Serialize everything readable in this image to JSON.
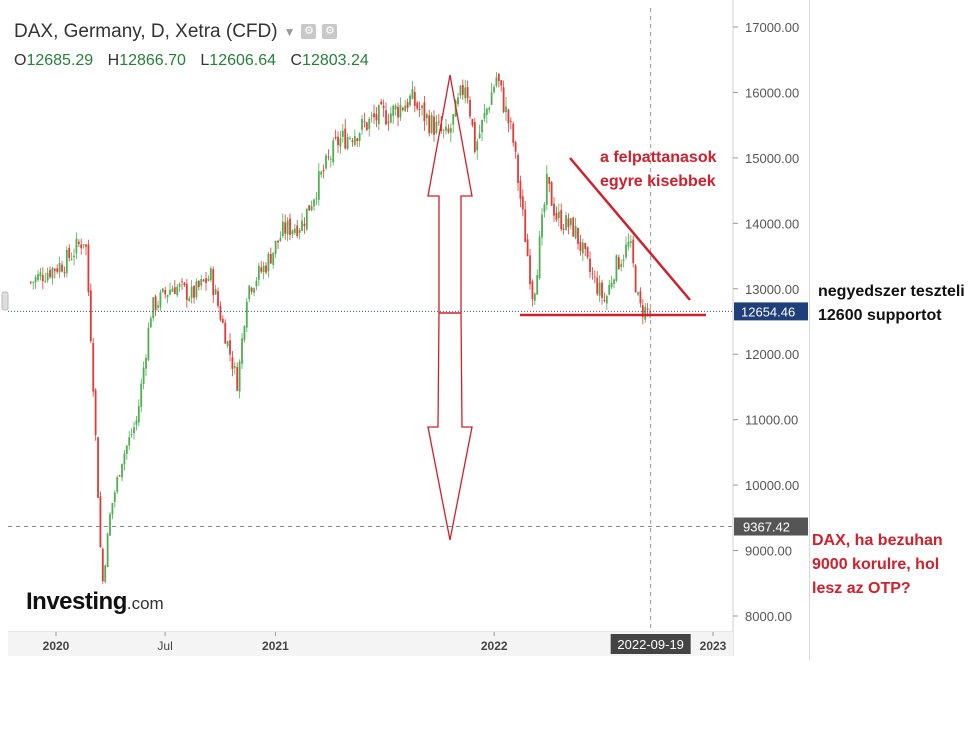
{
  "header": {
    "title": "DAX, Germany, D, Xetra (CFD)",
    "open_label": "O",
    "open": "12685.29",
    "high_label": "H",
    "high": "12866.70",
    "low_label": "L",
    "low": "12606.64",
    "close_label": "C",
    "close": "12803.24"
  },
  "logo": {
    "brand": "Investing",
    "suffix": ".com"
  },
  "annotations": {
    "triangle_note_line1": "a felpattanasok",
    "triangle_note_line2": "egyre kisebbek",
    "support_note_line1": "negyedszer teszteli",
    "support_note_line2": "12600 supportot",
    "crash_note_line1": "DAX, ha bezuhan",
    "crash_note_line2": "9000 korulre, hol",
    "crash_note_line3": "lesz az OTP?"
  },
  "colors": {
    "up": "#4caf50",
    "down": "#e53935",
    "annotation": "#d0202c",
    "price_badge": "#1f3f7a",
    "level_badge": "#555555"
  },
  "chart_data": {
    "type": "candlestick",
    "title": "DAX, Germany, D, Xetra (CFD)",
    "ylim": [
      7700,
      17200
    ],
    "y_ticks": [
      "17000.00",
      "16000.00",
      "15000.00",
      "14000.00",
      "13000.00",
      "12000.00",
      "11000.00",
      "10000.00",
      "9000.00",
      "8000.00"
    ],
    "y_tick_values": [
      17000,
      16000,
      15000,
      14000,
      13000,
      12000,
      11000,
      10000,
      9000,
      8000
    ],
    "x_ticks": [
      "2020",
      "Jul",
      "2021",
      "2022",
      "2023"
    ],
    "x_tick_dates": [
      "2020-01-01",
      "2020-07-01",
      "2021-01-01",
      "2022-01-01",
      "2023-01-01"
    ],
    "x_range": [
      "2019-11-20",
      "2023-02-15"
    ],
    "price_label": "12654.46",
    "price_level": 12654.46,
    "level_label": "9367.42",
    "level_value": 9367.42,
    "crosshair_date_label": "2022-09-19",
    "crosshair_date": "2022-09-19",
    "support_level": 12600,
    "series": [
      {
        "values_date": [
          "2019-11-20",
          "2019-12-15",
          "2020-01-15",
          "2020-02-19",
          "2020-03-01",
          "2020-03-18",
          "2020-04-01",
          "2020-04-20",
          "2020-05-15",
          "2020-06-08",
          "2020-07-15",
          "2020-08-15",
          "2020-09-15",
          "2020-10-30",
          "2020-11-15",
          "2020-12-15",
          "2021-01-15",
          "2021-02-15",
          "2021-03-15",
          "2021-04-15",
          "2021-05-15",
          "2021-06-15",
          "2021-07-15",
          "2021-08-15",
          "2021-09-15",
          "2021-10-15",
          "2021-11-15",
          "2021-11-30",
          "2021-12-15",
          "2022-01-05",
          "2022-02-01",
          "2022-03-07",
          "2022-03-30",
          "2022-04-15",
          "2022-05-15",
          "2022-06-10",
          "2022-07-05",
          "2022-07-20",
          "2022-08-15",
          "2022-08-31",
          "2022-09-19"
        ],
        "values": [
          13100,
          13250,
          13400,
          13790,
          12000,
          8440,
          9600,
          10400,
          11000,
          12700,
          13050,
          12900,
          13200,
          11550,
          13000,
          13350,
          13900,
          14000,
          14650,
          15250,
          15400,
          15600,
          15700,
          15900,
          15550,
          15300,
          16200,
          15150,
          15600,
          16250,
          15300,
          12850,
          14600,
          14100,
          13900,
          13250,
          12800,
          13300,
          13700,
          12700,
          12650
        ]
      }
    ]
  }
}
